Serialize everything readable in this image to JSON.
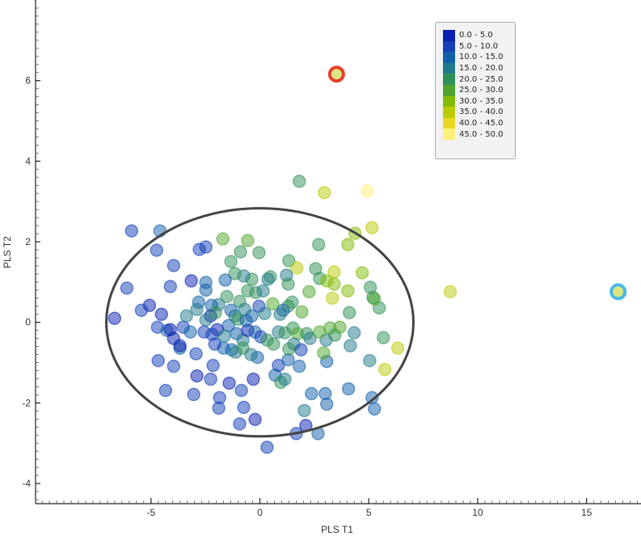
{
  "chart_data": {
    "type": "scatter",
    "xlabel": "PLS T1",
    "ylabel": "PLS T2",
    "xlim": [
      -10.3,
      17.5
    ],
    "ylim": [
      -4.5,
      8.0
    ],
    "xticks": [
      -5,
      0,
      5,
      10,
      15
    ],
    "yticks": [
      -4,
      -2,
      0,
      2,
      4,
      6
    ],
    "grid": false,
    "legend_placement": "top-right",
    "legend": {
      "bins": [
        {
          "label": "0.0 - 5.0",
          "color": "#0a1fb0"
        },
        {
          "label": "5.0 - 10.0",
          "color": "#1340b8"
        },
        {
          "label": "10.0 - 15.0",
          "color": "#1160ab"
        },
        {
          "label": "15.0 - 20.0",
          "color": "#217a8c"
        },
        {
          "label": "20.0 - 25.0",
          "color": "#2f9158"
        },
        {
          "label": "25.0 - 30.0",
          "color": "#4ea52e"
        },
        {
          "label": "30.0 - 35.0",
          "color": "#84bb06"
        },
        {
          "label": "35.0 - 40.0",
          "color": "#bccb08"
        },
        {
          "label": "40.0 - 45.0",
          "color": "#e6d825"
        },
        {
          "label": "45.0 - 50.0",
          "color": "#fff07a"
        }
      ]
    },
    "confidence_ellipse": {
      "center": [
        0,
        0
      ],
      "semi_axes": [
        7.05,
        2.83
      ],
      "color": "#444444"
    },
    "highlighted_points": [
      {
        "x": 3.52,
        "y": 6.16,
        "ring_color": "#e8402a"
      },
      {
        "x": 16.45,
        "y": 0.76,
        "ring_color": "#4ab8e8"
      }
    ],
    "points_columns": [
      "t1",
      "t2",
      "color_value"
    ],
    "points": [
      [
        -5.89,
        2.27,
        7.5
      ],
      [
        -4.59,
        2.27,
        12.5
      ],
      [
        -6.11,
        0.85,
        7.5
      ],
      [
        -6.67,
        0.1,
        2.5
      ],
      [
        -5.07,
        0.42,
        2.5
      ],
      [
        -5.44,
        0.3,
        7.5
      ],
      [
        -4.74,
        1.79,
        7.5
      ],
      [
        -3.96,
        1.41,
        7.5
      ],
      [
        -4.11,
        0.89,
        7.5
      ],
      [
        -3.15,
        1.03,
        2.5
      ],
      [
        -2.78,
        1.81,
        7.5
      ],
      [
        -2.48,
        1.87,
        7.5
      ],
      [
        -2.48,
        0.99,
        12.5
      ],
      [
        -2.48,
        0.8,
        12.5
      ],
      [
        -4.52,
        0.2,
        2.5
      ],
      [
        -4.7,
        -0.12,
        7.5
      ],
      [
        -4.26,
        -0.2,
        12.5
      ],
      [
        -4.11,
        -0.18,
        2.5
      ],
      [
        -3.52,
        -0.12,
        7.5
      ],
      [
        -3.96,
        -0.4,
        2.5
      ],
      [
        -4.67,
        -0.95,
        7.5
      ],
      [
        -3.96,
        -1.09,
        7.5
      ],
      [
        -3.67,
        -0.64,
        12.5
      ],
      [
        -3.67,
        -0.58,
        2.5
      ],
      [
        -2.93,
        -0.78,
        7.5
      ],
      [
        -2.89,
        -1.33,
        2.5
      ],
      [
        -2.15,
        -1.07,
        7.5
      ],
      [
        -2.26,
        -1.41,
        7.5
      ],
      [
        -4.33,
        -1.69,
        7.5
      ],
      [
        -3.04,
        -1.79,
        7.5
      ],
      [
        -1.41,
        -1.51,
        2.5
      ],
      [
        -1.85,
        -1.87,
        7.5
      ],
      [
        -0.85,
        -1.69,
        7.5
      ],
      [
        -0.3,
        -1.41,
        2.5
      ],
      [
        -0.74,
        -2.11,
        7.5
      ],
      [
        -1.89,
        -2.13,
        7.5
      ],
      [
        -0.93,
        -2.52,
        7.5
      ],
      [
        -0.22,
        -2.41,
        2.5
      ],
      [
        0.33,
        -3.1,
        7.5
      ],
      [
        1.67,
        -2.76,
        7.5
      ],
      [
        2.11,
        -2.56,
        2.5
      ],
      [
        2.67,
        -2.76,
        12.5
      ],
      [
        3.07,
        -2.03,
        12.5
      ],
      [
        3.0,
        -1.77,
        12.5
      ],
      [
        0.7,
        -1.31,
        12.5
      ],
      [
        -0.11,
        -0.87,
        12.5
      ],
      [
        0.85,
        -1.07,
        7.5
      ],
      [
        1.3,
        -0.93,
        12.5
      ],
      [
        3.07,
        -0.97,
        12.5
      ],
      [
        1.81,
        -1.09,
        12.5
      ],
      [
        2.37,
        -1.77,
        12.5
      ],
      [
        2.04,
        -2.19,
        17.5
      ],
      [
        0.96,
        -1.49,
        22.5
      ],
      [
        1.15,
        -1.41,
        17.5
      ],
      [
        3.04,
        -0.44,
        17.5
      ],
      [
        4.15,
        -0.58,
        17.5
      ],
      [
        4.33,
        -0.26,
        17.5
      ],
      [
        5.04,
        -0.95,
        17.5
      ],
      [
        4.07,
        -1.65,
        12.5
      ],
      [
        5.15,
        -1.87,
        12.5
      ],
      [
        5.26,
        -2.15,
        12.5
      ],
      [
        5.67,
        -0.38,
        22.5
      ],
      [
        5.48,
        0.36,
        22.5
      ],
      [
        5.19,
        0.62,
        22.5
      ],
      [
        5.26,
        0.58,
        27.5
      ],
      [
        5.07,
        0.87,
        22.5
      ],
      [
        5.74,
        -1.17,
        37.5
      ],
      [
        6.33,
        -0.64,
        37.5
      ],
      [
        8.74,
        0.76,
        37.5
      ],
      [
        3.52,
        6.16,
        37.5
      ],
      [
        16.45,
        0.76,
        37.5
      ],
      [
        1.81,
        3.5,
        22.5
      ],
      [
        2.96,
        3.22,
        37.5
      ],
      [
        4.93,
        3.26,
        47.5
      ],
      [
        5.15,
        2.35,
        37.5
      ],
      [
        4.37,
        2.21,
        32.5
      ],
      [
        4.04,
        1.93,
        32.5
      ],
      [
        2.7,
        1.93,
        22.5
      ],
      [
        -1.7,
        2.07,
        27.5
      ],
      [
        -0.56,
        2.03,
        27.5
      ],
      [
        -0.89,
        1.75,
        22.5
      ],
      [
        -1.33,
        1.51,
        22.5
      ],
      [
        -0.04,
        1.73,
        22.5
      ],
      [
        1.33,
        1.53,
        22.5
      ],
      [
        1.7,
        1.35,
        37.5
      ],
      [
        2.56,
        1.33,
        22.5
      ],
      [
        3.41,
        1.25,
        37.5
      ],
      [
        4.7,
        1.23,
        32.5
      ],
      [
        2.74,
        1.09,
        22.5
      ],
      [
        3.07,
        1.03,
        32.5
      ],
      [
        3.41,
        0.95,
        32.5
      ],
      [
        2.26,
        0.76,
        27.5
      ],
      [
        4.04,
        0.78,
        32.5
      ],
      [
        3.33,
        0.6,
        37.5
      ],
      [
        1.22,
        1.17,
        17.5
      ],
      [
        1.3,
        0.95,
        22.5
      ],
      [
        0.48,
        1.13,
        22.5
      ],
      [
        0.37,
        1.07,
        17.5
      ],
      [
        -0.37,
        1.07,
        22.5
      ],
      [
        -0.74,
        1.15,
        17.5
      ],
      [
        -1.15,
        1.21,
        22.5
      ],
      [
        -1.59,
        1.05,
        12.5
      ],
      [
        -0.56,
        0.78,
        22.5
      ],
      [
        -0.19,
        0.74,
        22.5
      ],
      [
        0.15,
        0.78,
        17.5
      ],
      [
        0.59,
        0.46,
        27.5
      ],
      [
        1.3,
        0.4,
        22.5
      ],
      [
        1.07,
        0.3,
        12.5
      ],
      [
        1.48,
        0.5,
        22.5
      ],
      [
        1.93,
        0.26,
        27.5
      ],
      [
        0.93,
        0.2,
        17.5
      ],
      [
        -0.04,
        0.4,
        7.5
      ],
      [
        0.22,
        0.22,
        17.5
      ],
      [
        -0.37,
        0.16,
        12.5
      ],
      [
        -0.93,
        0.52,
        22.5
      ],
      [
        -0.7,
        0.32,
        17.5
      ],
      [
        -1.33,
        0.3,
        12.5
      ],
      [
        -1.15,
        0.16,
        17.5
      ],
      [
        -1.89,
        0.44,
        17.5
      ],
      [
        -2.22,
        0.42,
        12.5
      ],
      [
        -2.81,
        0.5,
        12.5
      ],
      [
        -2.89,
        0.32,
        17.5
      ],
      [
        -2.26,
        0.16,
        2.5
      ],
      [
        -2.48,
        0.06,
        17.5
      ],
      [
        -2.04,
        0.24,
        22.5
      ],
      [
        -1.52,
        0.64,
        22.5
      ],
      [
        -1.44,
        -0.08,
        12.5
      ],
      [
        -1.96,
        -0.18,
        2.5
      ],
      [
        -2.19,
        -0.3,
        7.5
      ],
      [
        -1.63,
        -0.34,
        17.5
      ],
      [
        -1.07,
        -0.28,
        12.5
      ],
      [
        -0.78,
        -0.44,
        17.5
      ],
      [
        -0.56,
        -0.2,
        2.5
      ],
      [
        -0.22,
        -0.24,
        12.5
      ],
      [
        0.04,
        -0.36,
        7.5
      ],
      [
        0.33,
        -0.44,
        22.5
      ],
      [
        0.63,
        -0.54,
        22.5
      ],
      [
        0.85,
        -0.24,
        17.5
      ],
      [
        1.15,
        -0.26,
        22.5
      ],
      [
        1.52,
        -0.14,
        22.5
      ],
      [
        1.74,
        -0.28,
        27.5
      ],
      [
        2.15,
        -0.28,
        22.5
      ],
      [
        2.3,
        -0.4,
        17.5
      ],
      [
        2.74,
        -0.24,
        27.5
      ],
      [
        3.22,
        -0.14,
        27.5
      ],
      [
        3.44,
        -0.32,
        22.5
      ],
      [
        3.67,
        -0.12,
        27.5
      ],
      [
        2.93,
        -0.76,
        27.5
      ],
      [
        1.56,
        -0.54,
        17.5
      ],
      [
        1.89,
        -0.68,
        7.5
      ],
      [
        1.33,
        -0.66,
        22.5
      ],
      [
        -1.3,
        -0.68,
        12.5
      ],
      [
        -1.11,
        -0.74,
        17.5
      ],
      [
        -0.78,
        -0.64,
        22.5
      ],
      [
        -0.41,
        -0.8,
        17.5
      ],
      [
        -1.0,
        0.08,
        22.5
      ],
      [
        -0.63,
        0.04,
        12.5
      ],
      [
        -2.56,
        -0.24,
        7.5
      ],
      [
        -3.19,
        -0.24,
        12.5
      ],
      [
        -3.37,
        0.16,
        17.5
      ],
      [
        -1.67,
        -0.64,
        12.5
      ],
      [
        -2.07,
        -0.54,
        7.5
      ],
      [
        4.11,
        0.24,
        22.5
      ]
    ]
  }
}
